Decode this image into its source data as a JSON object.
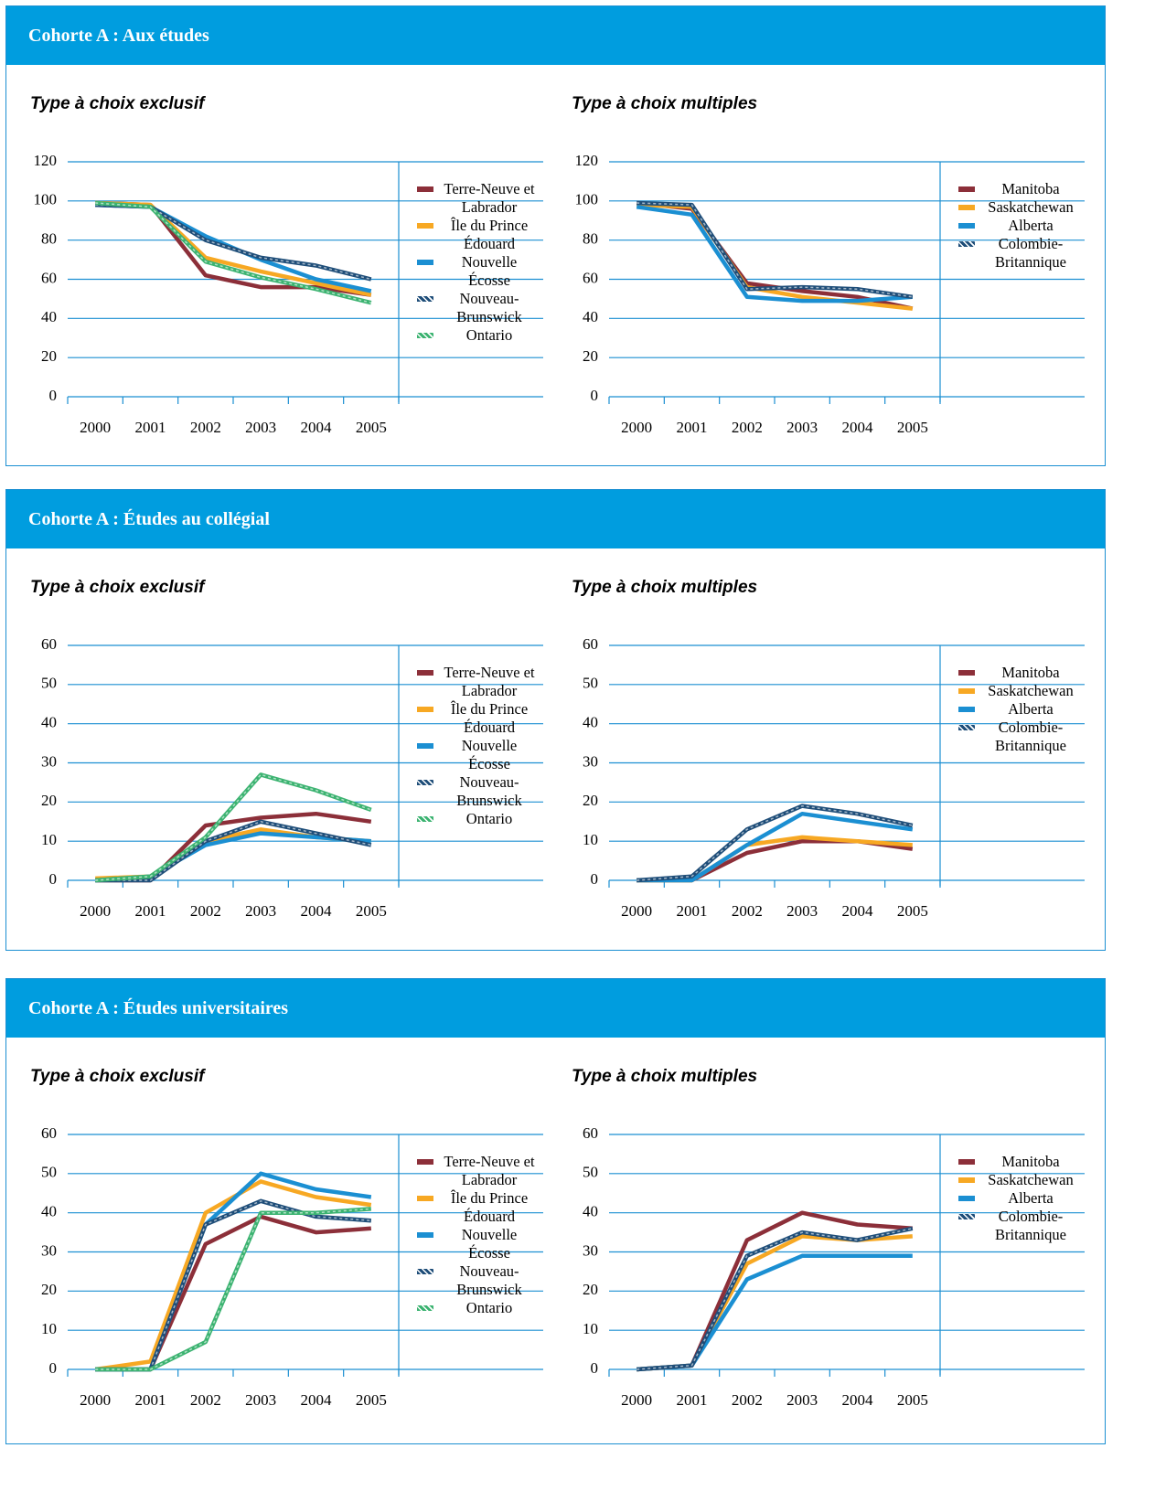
{
  "sections": [
    {
      "title": "Cohorte A : Aux études",
      "charts": [
        {
          "type": "line",
          "title": "Type à choix exclusif",
          "categories": [
            "2000",
            "2001",
            "2002",
            "2003",
            "2004",
            "2005"
          ],
          "ylim": [
            0,
            120
          ],
          "yticks": [
            0,
            20,
            40,
            60,
            80,
            100,
            120
          ],
          "grid": true,
          "series": [
            {
              "name": "Terre-Neuve et Labrador",
              "color": "#8c2f39",
              "values": [
                99,
                98,
                62,
                56,
                56,
                52
              ]
            },
            {
              "name": "Île du Prince Édouard",
              "color": "#f7a823",
              "values": [
                99,
                98,
                71,
                64,
                58,
                52
              ]
            },
            {
              "name": "Nouvelle Écosse",
              "color": "#1b8fd2",
              "values": [
                98,
                97,
                82,
                70,
                60,
                54
              ]
            },
            {
              "name": "Nouveau-Brunswick",
              "color": "#1f4e79",
              "pattern": "striped",
              "values": [
                98,
                97,
                80,
                71,
                67,
                60
              ]
            },
            {
              "name": "Ontario",
              "color": "#3cb371",
              "pattern": "striped",
              "values": [
                99,
                97,
                69,
                61,
                55,
                48
              ]
            }
          ]
        },
        {
          "type": "line",
          "title": "Type à choix multiples",
          "categories": [
            "2000",
            "2001",
            "2002",
            "2003",
            "2004",
            "2005"
          ],
          "ylim": [
            0,
            120
          ],
          "yticks": [
            0,
            20,
            40,
            60,
            80,
            100,
            120
          ],
          "grid": true,
          "series": [
            {
              "name": "Manitoba",
              "color": "#8c2f39",
              "values": [
                99,
                96,
                58,
                54,
                51,
                45
              ]
            },
            {
              "name": "Saskatchewan",
              "color": "#f7a823",
              "values": [
                98,
                97,
                56,
                51,
                48,
                45
              ]
            },
            {
              "name": "Alberta",
              "color": "#1b8fd2",
              "values": [
                97,
                93,
                51,
                49,
                49,
                51
              ]
            },
            {
              "name": "Colombie-Britannique",
              "color": "#1f4e79",
              "pattern": "striped",
              "values": [
                99,
                98,
                55,
                56,
                55,
                51
              ]
            }
          ]
        }
      ]
    },
    {
      "title": "Cohorte A : Études au collégial",
      "charts": [
        {
          "type": "line",
          "title": "Type à choix exclusif",
          "categories": [
            "2000",
            "2001",
            "2002",
            "2003",
            "2004",
            "2005"
          ],
          "ylim": [
            0,
            60
          ],
          "yticks": [
            0,
            10,
            20,
            30,
            40,
            50,
            60
          ],
          "grid": true,
          "series": [
            {
              "name": "Terre-Neuve et Labrador",
              "color": "#8c2f39",
              "values": [
                0,
                0,
                14,
                16,
                17,
                15
              ]
            },
            {
              "name": "Île du Prince Édouard",
              "color": "#f7a823",
              "values": [
                0.5,
                1,
                10,
                13,
                11,
                10
              ]
            },
            {
              "name": "Nouvelle Écosse",
              "color": "#1b8fd2",
              "values": [
                0,
                1,
                9,
                12,
                11,
                10
              ]
            },
            {
              "name": "Nouveau-Brunswick",
              "color": "#1f4e79",
              "pattern": "striped",
              "values": [
                0,
                0,
                10,
                15,
                12,
                9
              ]
            },
            {
              "name": "Ontario",
              "color": "#3cb371",
              "pattern": "striped",
              "values": [
                0,
                1,
                11,
                27,
                23,
                18
              ]
            }
          ]
        },
        {
          "type": "line",
          "title": "Type à choix multiples",
          "categories": [
            "2000",
            "2001",
            "2002",
            "2003",
            "2004",
            "2005"
          ],
          "ylim": [
            0,
            60
          ],
          "yticks": [
            0,
            10,
            20,
            30,
            40,
            50,
            60
          ],
          "grid": true,
          "series": [
            {
              "name": "Manitoba",
              "color": "#8c2f39",
              "values": [
                0,
                0,
                7,
                10,
                10,
                8
              ]
            },
            {
              "name": "Saskatchewan",
              "color": "#f7a823",
              "values": [
                0,
                0,
                9,
                11,
                10,
                9
              ]
            },
            {
              "name": "Alberta",
              "color": "#1b8fd2",
              "values": [
                0,
                0,
                9,
                17,
                15,
                13
              ]
            },
            {
              "name": "Colombie-Britannique",
              "color": "#1f4e79",
              "pattern": "striped",
              "values": [
                0,
                1,
                13,
                19,
                17,
                14
              ]
            }
          ]
        }
      ]
    },
    {
      "title": "Cohorte A : Études universitaires",
      "charts": [
        {
          "type": "line",
          "title": "Type à choix exclusif",
          "categories": [
            "2000",
            "2001",
            "2002",
            "2003",
            "2004",
            "2005"
          ],
          "ylim": [
            0,
            60
          ],
          "yticks": [
            0,
            10,
            20,
            30,
            40,
            50,
            60
          ],
          "grid": true,
          "series": [
            {
              "name": "Terre-Neuve et Labrador",
              "color": "#8c2f39",
              "values": [
                0,
                0,
                32,
                39,
                35,
                36
              ]
            },
            {
              "name": "Île du Prince Édouard",
              "color": "#f7a823",
              "values": [
                0,
                2,
                40,
                48,
                44,
                42
              ]
            },
            {
              "name": "Nouvelle Écosse",
              "color": "#1b8fd2",
              "values": [
                0,
                0,
                37,
                50,
                46,
                44
              ]
            },
            {
              "name": "Nouveau-Brunswick",
              "color": "#1f4e79",
              "pattern": "striped",
              "values": [
                0,
                0,
                37,
                43,
                39,
                38
              ]
            },
            {
              "name": "Ontario",
              "color": "#3cb371",
              "pattern": "striped",
              "values": [
                0,
                0,
                7,
                40,
                40,
                41
              ]
            }
          ]
        },
        {
          "type": "line",
          "title": "Type à choix multiples",
          "categories": [
            "2000",
            "2001",
            "2002",
            "2003",
            "2004",
            "2005"
          ],
          "ylim": [
            0,
            60
          ],
          "yticks": [
            0,
            10,
            20,
            30,
            40,
            50,
            60
          ],
          "grid": true,
          "series": [
            {
              "name": "Manitoba",
              "color": "#8c2f39",
              "values": [
                0,
                1,
                33,
                40,
                37,
                36
              ]
            },
            {
              "name": "Saskatchewan",
              "color": "#f7a823",
              "values": [
                0,
                1,
                27,
                34,
                33,
                34
              ]
            },
            {
              "name": "Alberta",
              "color": "#1b8fd2",
              "values": [
                0,
                1,
                23,
                29,
                29,
                29
              ]
            },
            {
              "name": "Colombie-Britannique",
              "color": "#1f4e79",
              "pattern": "striped",
              "values": [
                0,
                1,
                29,
                35,
                33,
                36
              ]
            }
          ]
        }
      ]
    }
  ]
}
